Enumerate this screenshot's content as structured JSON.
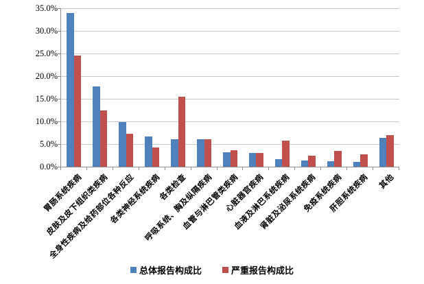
{
  "chart_data": {
    "type": "bar",
    "title": "",
    "xlabel": "",
    "ylabel": "",
    "categories": [
      "胃肠系统疾病",
      "皮肤及皮下组织类疾病",
      "全身性疾病及给药部位各种反应",
      "各类神经系统疾病",
      "各类检查",
      "呼吸系统、胸及纵隔疾病",
      "血管与淋巴管类疾病",
      "心脏器官疾病",
      "血液及淋巴系统疾病",
      "肾脏及泌尿系统疾病",
      "免疫系统疾病",
      "肝胆系统疾病",
      "其他"
    ],
    "series": [
      {
        "name": "总体报告构成比",
        "color": "#4F81BD",
        "values": [
          34.0,
          17.7,
          9.8,
          6.7,
          6.0,
          6.1,
          3.2,
          3.0,
          1.6,
          1.4,
          1.2,
          1.0,
          6.4
        ]
      },
      {
        "name": "严重报告构成比",
        "color": "#C0504D",
        "values": [
          24.6,
          12.5,
          7.2,
          4.3,
          15.4,
          6.1,
          3.6,
          3.1,
          5.8,
          2.4,
          3.5,
          2.8,
          7.0
        ]
      }
    ],
    "y_axis": {
      "min": 0,
      "max": 35,
      "step": 5,
      "tick_labels": [
        "35.0%",
        "30.0%",
        "25.0%",
        "20.0%",
        "15.0%",
        "10.0%",
        "5.0%",
        "0.0%"
      ]
    },
    "grid": true,
    "legend_position": "bottom"
  }
}
